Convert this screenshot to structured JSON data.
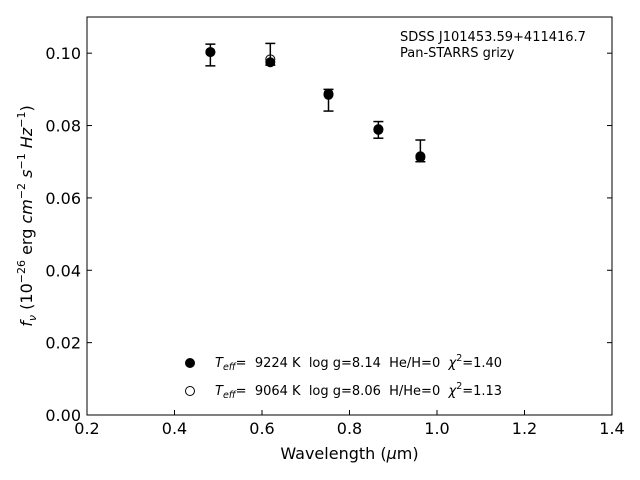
{
  "chart_data": {
    "type": "scatter",
    "title": "",
    "xlabel": "Wavelength (μm)",
    "ylabel": "f_ν (10^-26 erg cm^-2 s^-1 Hz^-1)",
    "xlim": [
      0.2,
      1.4
    ],
    "ylim": [
      0.0,
      0.11
    ],
    "x_ticks": [
      0.2,
      0.4,
      0.6,
      0.8,
      1.0,
      1.2,
      1.4
    ],
    "y_ticks": [
      0.0,
      0.02,
      0.04,
      0.06,
      0.08,
      0.1
    ],
    "x_tick_labels": [
      "0.2",
      "0.4",
      "0.6",
      "0.8",
      "1.0",
      "1.2",
      "1.4"
    ],
    "y_tick_labels": [
      "0.00",
      "0.02",
      "0.04",
      "0.06",
      "0.08",
      "0.10"
    ],
    "grid": false,
    "annotation": {
      "line1": "SDSS J101453.59+411416.7",
      "line2": "Pan-STARRS grizy"
    },
    "observed": {
      "x": [
        0.482,
        0.619,
        0.752,
        0.866,
        0.962
      ],
      "y": [
        0.0995,
        0.0997,
        0.087,
        0.0788,
        0.073
      ],
      "yerr": [
        0.003,
        0.003,
        0.003,
        0.0023,
        0.003
      ]
    },
    "series": [
      {
        "marker": "filled-circle",
        "x": [
          0.482,
          0.619,
          0.752,
          0.866,
          0.962
        ],
        "y": [
          0.1003,
          0.0975,
          0.0885,
          0.079,
          0.0715
        ],
        "legend": {
          "teff_sym": "T",
          "teff_sub": "eff",
          "eq": "=  9224 K  log g=8.14  He/H=0  ",
          "chi": "χ",
          "chi_exp": "2",
          "chi_val": "=1.40"
        }
      },
      {
        "marker": "open-circle",
        "x": [
          0.482,
          0.619,
          0.752,
          0.866,
          0.962
        ],
        "y": [
          0.1003,
          0.0983,
          0.0888,
          0.0788,
          0.0712
        ],
        "legend": {
          "teff_sym": "T",
          "teff_sub": "eff",
          "eq": "=  9064 K  log g=8.06  H/He=0  ",
          "chi": "χ",
          "chi_exp": "2",
          "chi_val": "=1.13"
        }
      }
    ],
    "legend_position": "bottom-center"
  }
}
